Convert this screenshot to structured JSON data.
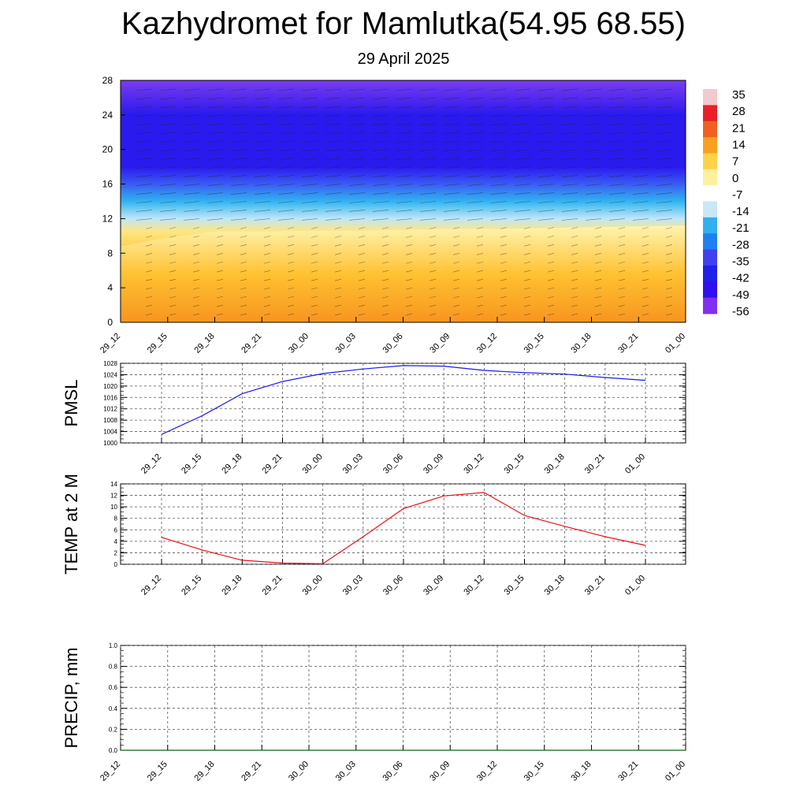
{
  "header": {
    "title": "Kazhydromet for Mamlutka(54.95 68.55)",
    "subtitle": "29 April 2025"
  },
  "colors": {
    "pmsl_line": "#1a1aee",
    "temp_line": "#ee1111",
    "precip_line": "#116611",
    "axis": "#000000",
    "grid": "#555555"
  },
  "chart_data": [
    {
      "type": "heatmap",
      "x_ticks": [
        "29_12",
        "29_15",
        "29_18",
        "29_21",
        "30_00",
        "30_03",
        "30_06",
        "30_09",
        "30_12",
        "30_15",
        "30_18",
        "30_21",
        "01_00"
      ],
      "y_ticks": [
        0,
        4,
        8,
        12,
        16,
        20,
        24,
        28
      ],
      "ylim": [
        0,
        28
      ],
      "colorbar_labels": [
        "35",
        "28",
        "21",
        "14",
        "7",
        "0",
        "-7",
        "-14",
        "-21",
        "-28",
        "-35",
        "-42",
        "-49",
        "-56"
      ],
      "colorbar_colors": [
        "#f2c9cc",
        "#ea2028",
        "#f06020",
        "#f8a020",
        "#ffd24a",
        "#fff0a0",
        "#ffffff",
        "#c8e8f8",
        "#30b0f0",
        "#2080f0",
        "#4040f0",
        "#2020e8",
        "#3010f0",
        "#8030f0"
      ],
      "temperature_profile": [
        {
          "height": 0,
          "value": 12
        },
        {
          "height": 8,
          "value": 4
        },
        {
          "height": 10.5,
          "value": -6
        },
        {
          "height": 12,
          "value": -14
        },
        {
          "height": 14,
          "value": -24
        },
        {
          "height": 16,
          "value": -36
        },
        {
          "height": 18,
          "value": -50
        },
        {
          "height": 20,
          "value": -52
        },
        {
          "height": 24,
          "value": -52
        },
        {
          "height": 28,
          "value": -56
        }
      ],
      "note_layer_top": [
        8.8,
        9.8,
        10.5,
        10.5,
        10.6,
        10.6,
        10.7,
        10.8,
        10.8,
        10.9,
        11.0,
        11.1,
        11.2
      ]
    },
    {
      "type": "line",
      "ylabel": "PMSL",
      "x_ticks": [
        "29_12",
        "29_15",
        "29_18",
        "29_21",
        "30_00",
        "30_03",
        "30_06",
        "30_09",
        "30_12",
        "30_15",
        "30_18",
        "30_21",
        "01_00"
      ],
      "y_ticks": [
        1000,
        1004,
        1008,
        1012,
        1016,
        1020,
        1024,
        1028
      ],
      "ylim": [
        1000,
        1028
      ],
      "series": [
        {
          "values": [
            1003.0,
            1009.5,
            1017.3,
            1021.6,
            1024.4,
            1026.0,
            1027.2,
            1027.0,
            1025.5,
            1024.7,
            1024.2,
            1023.0,
            1022.0
          ]
        }
      ]
    },
    {
      "type": "line",
      "ylabel": "TEMP at 2 M",
      "x_ticks": [
        "29_12",
        "29_15",
        "29_18",
        "29_21",
        "30_00",
        "30_03",
        "30_06",
        "30_09",
        "30_12",
        "30_15",
        "30_18",
        "30_21",
        "01_00"
      ],
      "y_ticks": [
        0,
        2,
        4,
        6,
        8,
        10,
        12,
        14
      ],
      "ylim": [
        0,
        14
      ],
      "series": [
        {
          "values": [
            4.7,
            2.5,
            0.7,
            0.2,
            0.1,
            4.8,
            9.7,
            11.9,
            12.5,
            8.5,
            6.6,
            4.8,
            3.3
          ]
        }
      ]
    },
    {
      "type": "line",
      "ylabel": "PRECIP, mm",
      "x_ticks": [
        "29_12",
        "29_15",
        "29_18",
        "29_21",
        "30_00",
        "30_03",
        "30_06",
        "30_09",
        "30_12",
        "30_15",
        "30_18",
        "30_21",
        "01_00"
      ],
      "y_ticks": [
        "0.0",
        "0.2",
        "0.4",
        "0.6",
        "0.8",
        "1.0"
      ],
      "ylim": [
        0,
        1
      ],
      "series": [
        {
          "values": [
            0,
            0,
            0,
            0,
            0,
            0,
            0,
            0,
            0,
            0,
            0,
            0,
            0
          ]
        }
      ]
    }
  ]
}
